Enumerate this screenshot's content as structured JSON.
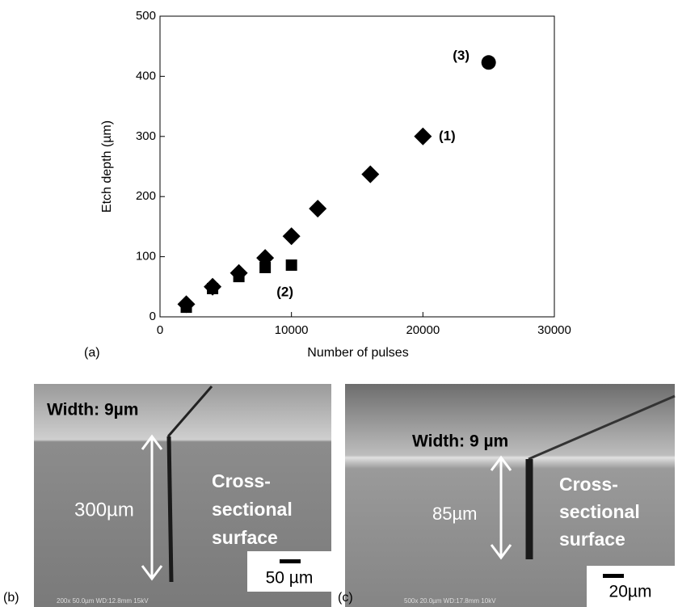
{
  "chart_data": {
    "type": "scatter",
    "x_label": "Number of pulses",
    "y_label": "Etch depth (µm)",
    "panel_label": "(a)",
    "xlim": [
      0,
      30000
    ],
    "xticks": [
      0,
      10000,
      20000,
      30000
    ],
    "ylim": [
      0,
      500
    ],
    "yticks": [
      0,
      100,
      200,
      300,
      400,
      500
    ],
    "series": [
      {
        "name": "(1)",
        "marker": "diamond",
        "color": "#000000",
        "x": [
          2000,
          4000,
          6000,
          8000,
          10000,
          12000,
          16000,
          20000
        ],
        "values": [
          21,
          50,
          73,
          98,
          134,
          180,
          237,
          300
        ]
      },
      {
        "name": "(2)",
        "marker": "square",
        "color": "#000000",
        "x": [
          2000,
          4000,
          6000,
          8000,
          10000
        ],
        "values": [
          16,
          47,
          67,
          82,
          86
        ]
      },
      {
        "name": "(3)",
        "marker": "circle",
        "color": "#000000",
        "x": [
          25000
        ],
        "values": [
          423
        ]
      }
    ]
  },
  "images": [
    {
      "panel_label": "(b)",
      "width_label": "Width: 9µm",
      "depth_label": "300µm",
      "surface_label": [
        "Cross-",
        "sectional",
        "surface"
      ],
      "scale_label": "50 µm",
      "footer": "200x 50.0µm WD:12.8mm 15kV"
    },
    {
      "panel_label": "(c)",
      "width_label": "Width: 9 µm",
      "depth_label": "85µm",
      "surface_label": [
        "Cross-",
        "sectional",
        "surface"
      ],
      "scale_label": "20µm",
      "footer": "500x 20.0µm WD:17.8mm 10kV"
    }
  ]
}
